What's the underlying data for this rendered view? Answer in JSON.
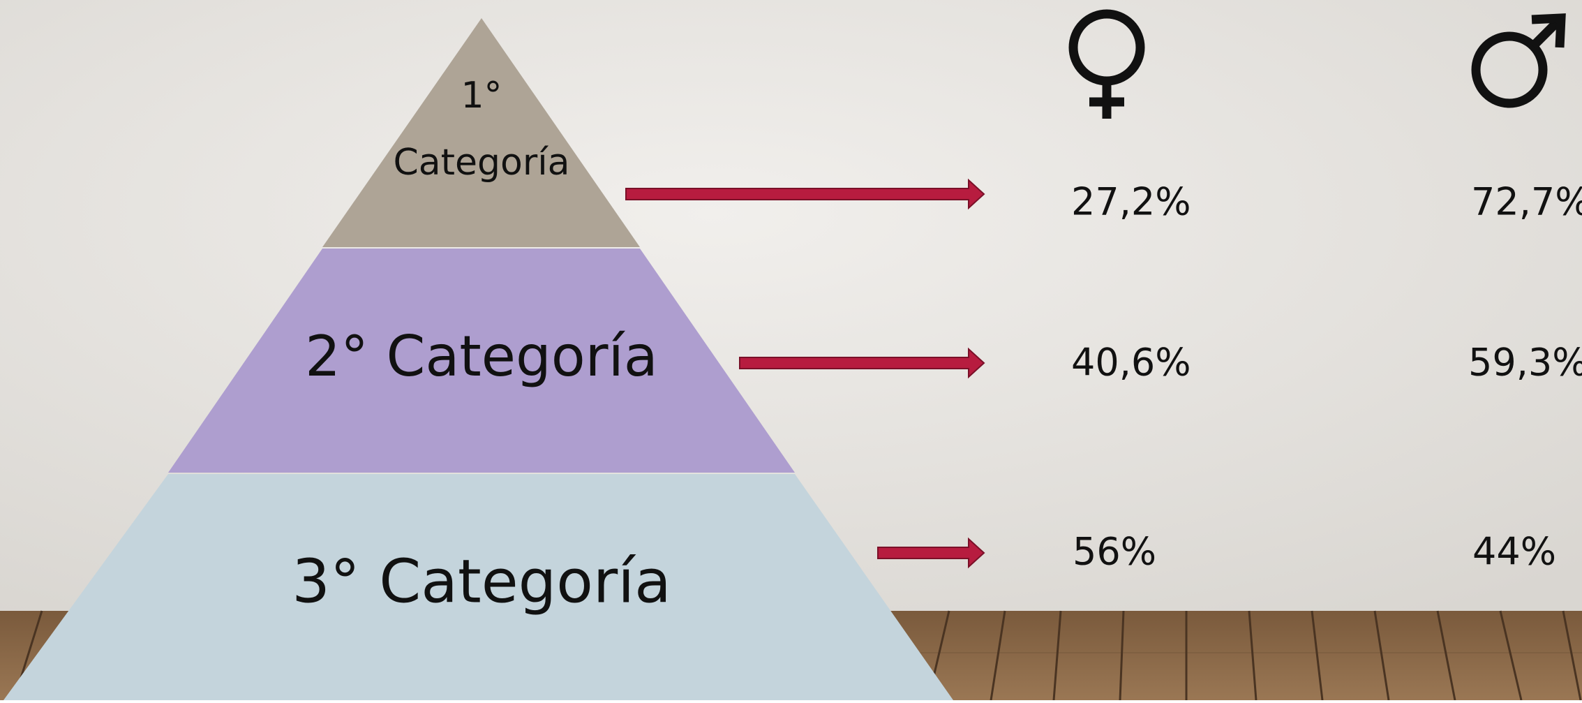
{
  "levels": [
    {
      "label_lines": [
        "1°",
        "Categoría"
      ],
      "female": "27,2%",
      "male": "72,7%"
    },
    {
      "label": "2° Categoría",
      "female": "40,6%",
      "male": "59,3%"
    },
    {
      "label": "3° Categoría",
      "female": "56%",
      "male": "44%"
    }
  ]
}
